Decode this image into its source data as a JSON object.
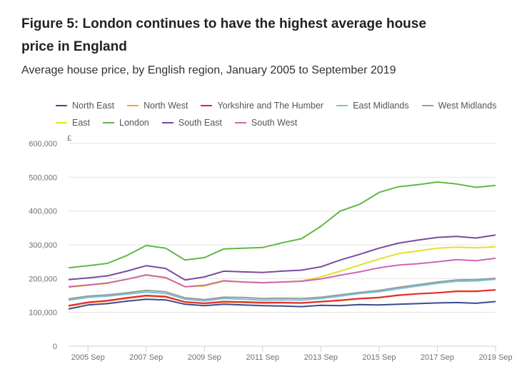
{
  "title": "Figure 5: London continues to have the highest average house price in England",
  "subtitle": "Average house price, by English region, January 2005 to September 2019",
  "chart_data": {
    "type": "line",
    "title": "Figure 5: London continues to have the highest average house price in England",
    "subtitle": "Average house price, by English region, January 2005 to September 2019",
    "xlabel": "",
    "ylabel": "£",
    "ylim": [
      0,
      600000
    ],
    "xlim": [
      "2005-01",
      "2019-09"
    ],
    "grid": true,
    "legend_position": "top",
    "yticks": [
      0,
      100000,
      200000,
      300000,
      400000,
      500000,
      600000
    ],
    "ytick_labels": [
      "0",
      "100,000",
      "200,000",
      "300,000",
      "400,000",
      "500,000",
      "600,000"
    ],
    "xticks": [
      "2005 Sep",
      "2007 Sep",
      "2009 Sep",
      "2011 Sep",
      "2013 Sep",
      "2015 Sep",
      "2017 Sep",
      "2019 Sep"
    ],
    "x": [
      "2005-01",
      "2005-09",
      "2006-05",
      "2007-01",
      "2007-09",
      "2008-05",
      "2009-01",
      "2009-09",
      "2010-05",
      "2011-01",
      "2011-09",
      "2012-05",
      "2013-01",
      "2013-09",
      "2014-05",
      "2015-01",
      "2015-09",
      "2016-05",
      "2017-01",
      "2017-09",
      "2018-05",
      "2019-01",
      "2019-09"
    ],
    "series": [
      {
        "name": "North East",
        "color": "#3b4a8f",
        "values": [
          110000,
          122000,
          126000,
          133000,
          139000,
          137000,
          124000,
          120000,
          124000,
          122000,
          120000,
          119000,
          117000,
          121000,
          120000,
          123000,
          122000,
          124000,
          126000,
          128000,
          129000,
          127000,
          132000
        ]
      },
      {
        "name": "North West",
        "color": "#f0a043",
        "values": [
          118000,
          128000,
          133000,
          141000,
          148000,
          145000,
          130000,
          126000,
          130000,
          129000,
          127000,
          128000,
          127000,
          131000,
          135000,
          140000,
          143000,
          150000,
          155000,
          158000,
          163000,
          163000,
          166000
        ]
      },
      {
        "name": "Yorkshire and The Humber",
        "color": "#e8262b",
        "values": [
          120000,
          130000,
          135000,
          143000,
          150000,
          147000,
          131000,
          127000,
          132000,
          131000,
          129000,
          129000,
          128000,
          132000,
          136000,
          141000,
          144000,
          151000,
          155000,
          158000,
          162000,
          162000,
          167000
        ]
      },
      {
        "name": "East Midlands",
        "color": "#71c7d8",
        "values": [
          136000,
          144000,
          148000,
          154000,
          160000,
          156000,
          139000,
          134000,
          141000,
          139000,
          136000,
          137000,
          136000,
          141000,
          148000,
          156000,
          161000,
          170000,
          178000,
          186000,
          192000,
          193000,
          198000
        ]
      },
      {
        "name": "West Midlands",
        "color": "#9b9b9b",
        "values": [
          140000,
          148000,
          152000,
          158000,
          165000,
          161000,
          143000,
          138000,
          145000,
          144000,
          141000,
          142000,
          141000,
          145000,
          152000,
          159000,
          165000,
          174000,
          182000,
          190000,
          196000,
          197000,
          201000
        ]
      },
      {
        "name": "East",
        "color": "#e2e12b",
        "values": [
          174000,
          180000,
          186000,
          198000,
          210000,
          202000,
          176000,
          178000,
          192000,
          190000,
          187000,
          190000,
          193000,
          205000,
          222000,
          240000,
          258000,
          274000,
          282000,
          290000,
          293000,
          291000,
          294000
        ]
      },
      {
        "name": "London",
        "color": "#61b745",
        "values": [
          232000,
          238000,
          245000,
          268000,
          298000,
          290000,
          255000,
          262000,
          288000,
          290000,
          292000,
          306000,
          318000,
          355000,
          400000,
          420000,
          455000,
          472000,
          478000,
          486000,
          480000,
          470000,
          476000
        ]
      },
      {
        "name": "South East",
        "color": "#7a4b9c",
        "values": [
          197000,
          202000,
          208000,
          222000,
          238000,
          230000,
          196000,
          205000,
          222000,
          220000,
          218000,
          222000,
          225000,
          235000,
          255000,
          272000,
          290000,
          305000,
          314000,
          322000,
          325000,
          320000,
          329000
        ]
      },
      {
        "name": "South West",
        "color": "#d065b4",
        "values": [
          176000,
          181000,
          187000,
          198000,
          211000,
          203000,
          176000,
          180000,
          194000,
          190000,
          188000,
          190000,
          192000,
          199000,
          210000,
          220000,
          232000,
          240000,
          244000,
          250000,
          256000,
          253000,
          260000
        ]
      }
    ]
  },
  "legend": {
    "rows": [
      [
        0,
        1,
        2,
        3,
        4
      ],
      [
        5,
        6,
        7,
        8
      ]
    ]
  }
}
